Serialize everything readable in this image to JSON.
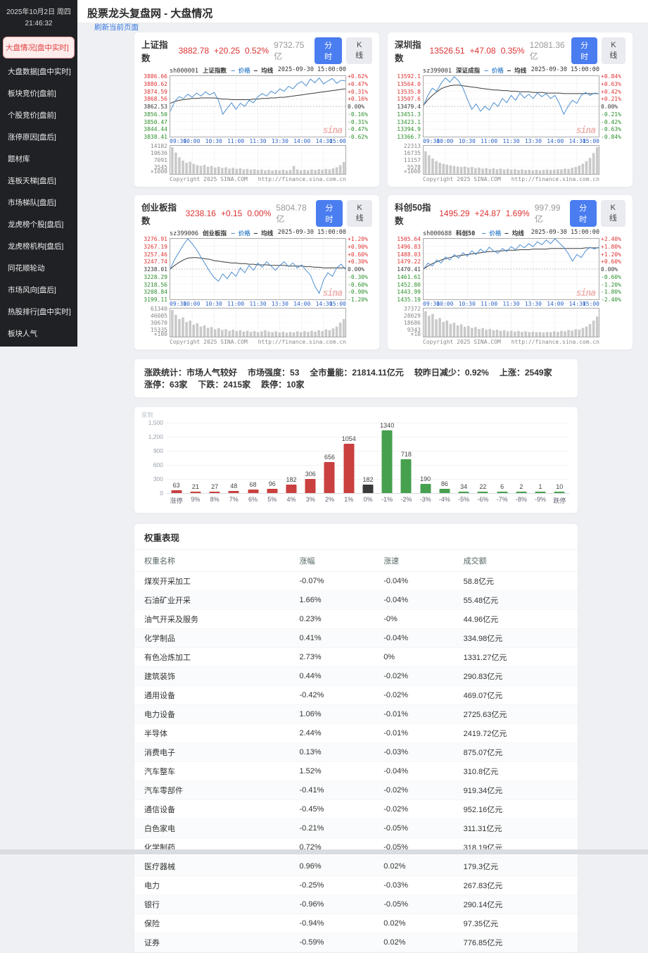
{
  "sidebar": {
    "date": "2025年10月2日 周四",
    "time": "21:46:32",
    "items": [
      {
        "label": "大盘情况[盘中实时]",
        "active": true
      },
      {
        "label": "大盘数据[盘中实时]",
        "active": false
      },
      {
        "label": "板块竞价[盘前]",
        "active": false
      },
      {
        "label": "个股竞价[盘前]",
        "active": false
      },
      {
        "label": "涨停原因[盘后]",
        "active": false
      },
      {
        "label": "题材库",
        "active": false
      },
      {
        "label": "连板天梯[盘后]",
        "active": false
      },
      {
        "label": "市场梯队[盘后]",
        "active": false
      },
      {
        "label": "龙虎榜个股[盘后]",
        "active": false
      },
      {
        "label": "龙虎榜机构[盘后]",
        "active": false
      },
      {
        "label": "同花顺轮动",
        "active": false
      },
      {
        "label": "市场风向[盘后]",
        "active": false
      },
      {
        "label": "热股排行[盘中实时]",
        "active": false
      },
      {
        "label": "板块人气",
        "active": false
      }
    ],
    "partial_item": "···"
  },
  "header": {
    "title": "股票龙头复盘网 - 大盘情况",
    "refresh_link": "刷新当前页面"
  },
  "chart_common": {
    "buttons": {
      "minute": "分时",
      "kline": "K线"
    },
    "legend": {
      "price": "价格",
      "avg": "均线"
    },
    "datetime": "2025-09-30 15:00:00",
    "x_labels": [
      "09:30",
      "10:00",
      "10:30",
      "11:00",
      "11:30",
      "13:30",
      "14:00",
      "14:30",
      "15:00"
    ],
    "copyright": "Copyright 2025 SINA.COM",
    "url": "http://finance.sina.com.cn",
    "watermark": "sina",
    "price_color": "#4d8fd1",
    "avg_color": "#3c3c3c",
    "volume_color": "#c9c9c9"
  },
  "index_charts": [
    {
      "name": "上证指数",
      "value": "3882.78",
      "change": "+20.25",
      "pct": "0.52%",
      "amount": "9732.75亿",
      "symbol": "sh000001",
      "inner_name": "上证指数",
      "left_labels": [
        "3886.66",
        "3880.62",
        "3874.59",
        "3868.56",
        "3862.53",
        "3856.50",
        "3850.47",
        "3844.44",
        "3838.41"
      ],
      "right_labels": [
        "+0.62%",
        "+0.47%",
        "+0.31%",
        "+0.16%",
        "0.00%",
        "-0.16%",
        "-0.31%",
        "-0.47%",
        "-0.62%"
      ],
      "vol_labels": [
        "14182",
        "10636",
        "7091",
        "3545"
      ],
      "vol_unit": "×1000",
      "price": [
        0.42,
        0.58,
        0.66,
        0.63,
        0.7,
        0.65,
        0.72,
        0.67,
        0.74,
        0.69,
        0.73,
        0.6,
        0.37,
        0.47,
        0.56,
        0.45,
        0.55,
        0.5,
        0.6,
        0.56,
        0.66,
        0.71,
        0.67,
        0.75,
        0.71,
        0.79,
        0.75,
        0.83,
        0.79,
        0.87,
        0.91,
        0.84,
        0.95,
        0.89,
        0.97,
        0.87,
        0.92,
        0.96,
        0.88,
        0.93,
        0.92
      ],
      "avg": [
        0.55,
        0.58,
        0.6,
        0.61,
        0.62,
        0.63,
        0.63,
        0.64,
        0.64,
        0.64,
        0.64,
        0.63,
        0.62,
        0.62,
        0.61,
        0.61,
        0.61,
        0.61,
        0.61,
        0.62,
        0.62,
        0.63,
        0.63,
        0.64,
        0.64,
        0.65,
        0.65,
        0.66,
        0.67,
        0.68,
        0.69,
        0.7,
        0.71,
        0.72,
        0.73,
        0.74,
        0.75,
        0.76,
        0.77,
        0.78,
        0.79
      ],
      "volume": [
        1.0,
        0.8,
        0.62,
        0.5,
        0.42,
        0.46,
        0.38,
        0.33,
        0.3,
        0.34,
        0.27,
        0.3,
        0.24,
        0.27,
        0.22,
        0.25,
        0.2,
        0.23,
        0.19,
        0.21,
        0.17,
        0.19,
        0.16,
        0.18,
        0.15,
        0.17,
        0.14,
        0.16,
        0.13,
        0.15,
        0.14,
        0.16,
        0.13,
        0.15,
        0.3,
        0.17,
        0.14,
        0.16,
        0.14,
        0.17,
        0.15,
        0.18,
        0.16,
        0.19,
        0.17,
        0.21,
        0.25,
        0.33,
        0.45
      ]
    },
    {
      "name": "深圳指数",
      "value": "13526.51",
      "change": "+47.08",
      "pct": "0.35%",
      "amount": "12081.36亿",
      "symbol": "sz399001",
      "inner_name": "深证成指",
      "left_labels": [
        "13592.1",
        "13564.0",
        "13535.8",
        "13507.6",
        "13479.4",
        "13451.3",
        "13423.1",
        "13394.9",
        "13366.7"
      ],
      "right_labels": [
        "+0.84%",
        "+0.63%",
        "+0.42%",
        "+0.21%",
        "0.00%",
        "-0.21%",
        "-0.42%",
        "-0.63%",
        "-0.84%"
      ],
      "vol_labels": [
        "22313",
        "16735",
        "11157",
        "5578"
      ],
      "vol_unit": "×1000",
      "price": [
        0.52,
        0.68,
        0.8,
        0.75,
        0.88,
        0.97,
        0.9,
        0.99,
        0.92,
        0.8,
        0.62,
        0.45,
        0.54,
        0.42,
        0.5,
        0.44,
        0.56,
        0.5,
        0.63,
        0.56,
        0.68,
        0.6,
        0.72,
        0.64,
        0.7,
        0.63,
        0.72,
        0.66,
        0.71,
        0.63,
        0.68,
        0.55,
        0.37,
        0.5,
        0.6,
        0.55,
        0.68,
        0.73,
        0.68,
        0.72,
        0.71
      ],
      "avg": [
        0.52,
        0.61,
        0.68,
        0.74,
        0.79,
        0.82,
        0.84,
        0.85,
        0.85,
        0.84,
        0.83,
        0.82,
        0.81,
        0.8,
        0.79,
        0.78,
        0.77,
        0.77,
        0.76,
        0.76,
        0.75,
        0.75,
        0.74,
        0.74,
        0.74,
        0.73,
        0.73,
        0.73,
        0.72,
        0.72,
        0.72,
        0.72,
        0.71,
        0.71,
        0.71,
        0.71,
        0.71,
        0.71,
        0.71,
        0.71,
        0.71
      ],
      "volume": [
        0.85,
        0.7,
        0.58,
        0.48,
        0.42,
        0.38,
        0.35,
        0.32,
        0.3,
        0.28,
        0.26,
        0.28,
        0.24,
        0.26,
        0.22,
        0.24,
        0.2,
        0.22,
        0.19,
        0.21,
        0.18,
        0.2,
        0.17,
        0.19,
        0.16,
        0.18,
        0.15,
        0.17,
        0.15,
        0.16,
        0.14,
        0.16,
        0.14,
        0.15,
        0.17,
        0.15,
        0.16,
        0.18,
        0.17,
        0.2,
        0.19,
        0.23,
        0.26,
        0.31,
        0.38,
        0.48,
        0.6,
        0.78,
        1.0
      ]
    },
    {
      "name": "创业板指数",
      "value": "3238.16",
      "change": "+0.15",
      "pct": "0.00%",
      "amount": "5804.78亿",
      "symbol": "sz399006",
      "inner_name": "创业板指",
      "left_labels": [
        "3276.91",
        "3267.19",
        "3257.46",
        "3247.74",
        "3238.01",
        "3228.29",
        "3218.56",
        "3208.84",
        "3199.11"
      ],
      "right_labels": [
        "+1.20%",
        "+0.90%",
        "+0.60%",
        "+0.30%",
        "0.00%",
        "-0.30%",
        "-0.60%",
        "-0.90%",
        "-1.20%"
      ],
      "vol_labels": [
        "61340",
        "46005",
        "30670",
        "15335"
      ],
      "vol_unit": "×100",
      "price": [
        0.5,
        0.66,
        0.78,
        0.9,
        1.0,
        0.92,
        0.82,
        0.7,
        0.58,
        0.46,
        0.36,
        0.3,
        0.42,
        0.34,
        0.45,
        0.38,
        0.52,
        0.44,
        0.56,
        0.48,
        0.6,
        0.53,
        0.62,
        0.55,
        0.48,
        0.56,
        0.62,
        0.54,
        0.6,
        0.52,
        0.57,
        0.48,
        0.4,
        0.22,
        0.1,
        0.32,
        0.44,
        0.38,
        0.52,
        0.58,
        0.5
      ],
      "avg": [
        0.5,
        0.56,
        0.61,
        0.65,
        0.68,
        0.69,
        0.69,
        0.68,
        0.67,
        0.66,
        0.64,
        0.63,
        0.62,
        0.61,
        0.6,
        0.6,
        0.59,
        0.59,
        0.58,
        0.58,
        0.57,
        0.57,
        0.57,
        0.56,
        0.56,
        0.56,
        0.56,
        0.55,
        0.55,
        0.55,
        0.55,
        0.54,
        0.54,
        0.53,
        0.53,
        0.52,
        0.52,
        0.52,
        0.52,
        0.52,
        0.52
      ],
      "volume": [
        1.0,
        0.82,
        0.66,
        0.72,
        0.55,
        0.6,
        0.45,
        0.5,
        0.38,
        0.42,
        0.33,
        0.36,
        0.28,
        0.32,
        0.25,
        0.28,
        0.22,
        0.26,
        0.21,
        0.24,
        0.19,
        0.22,
        0.18,
        0.21,
        0.17,
        0.2,
        0.24,
        0.19,
        0.17,
        0.2,
        0.16,
        0.19,
        0.15,
        0.18,
        0.16,
        0.2,
        0.17,
        0.21,
        0.18,
        0.22,
        0.19,
        0.24,
        0.21,
        0.27,
        0.24,
        0.31,
        0.38,
        0.52,
        0.66
      ]
    },
    {
      "name": "科创50指数",
      "value": "1495.29",
      "change": "+24.87",
      "pct": "1.69%",
      "amount": "997.99亿",
      "symbol": "sh000688",
      "inner_name": "科创50",
      "left_labels": [
        "1505.64",
        "1496.83",
        "1488.03",
        "1479.22",
        "1470.41",
        "1461.61",
        "1452.80",
        "1443.99",
        "1435.19"
      ],
      "right_labels": [
        "+2.40%",
        "+1.80%",
        "+1.20%",
        "+0.60%",
        "0.00%",
        "-0.60%",
        "-1.20%",
        "-1.80%",
        "-2.40%"
      ],
      "vol_labels": [
        "37372",
        "28029",
        "18686",
        "9343"
      ],
      "vol_unit": "×10",
      "price": [
        0.5,
        0.6,
        0.55,
        0.65,
        0.6,
        0.7,
        0.65,
        0.74,
        0.68,
        0.77,
        0.71,
        0.8,
        0.74,
        0.83,
        0.77,
        0.86,
        0.8,
        0.76,
        0.84,
        0.79,
        0.87,
        0.82,
        0.9,
        0.85,
        0.92,
        0.87,
        0.95,
        0.9,
        0.98,
        0.92,
        1.0,
        0.93,
        0.86,
        0.76,
        0.63,
        0.74,
        0.69,
        0.8,
        0.86,
        0.83,
        0.86
      ],
      "avg": [
        0.5,
        0.55,
        0.59,
        0.62,
        0.65,
        0.67,
        0.69,
        0.71,
        0.72,
        0.73,
        0.74,
        0.75,
        0.76,
        0.77,
        0.78,
        0.79,
        0.79,
        0.8,
        0.8,
        0.81,
        0.81,
        0.81,
        0.82,
        0.82,
        0.82,
        0.83,
        0.83,
        0.83,
        0.83,
        0.84,
        0.84,
        0.84,
        0.84,
        0.84,
        0.84,
        0.84,
        0.84,
        0.85,
        0.85,
        0.85,
        0.85
      ],
      "volume": [
        0.95,
        0.78,
        0.85,
        0.65,
        0.7,
        0.55,
        0.6,
        0.48,
        0.52,
        0.42,
        0.46,
        0.37,
        0.4,
        0.33,
        0.36,
        0.29,
        0.32,
        0.26,
        0.29,
        0.24,
        0.26,
        0.22,
        0.24,
        0.2,
        0.22,
        0.19,
        0.21,
        0.18,
        0.2,
        0.17,
        0.19,
        0.17,
        0.18,
        0.16,
        0.18,
        0.17,
        0.2,
        0.18,
        0.22,
        0.2,
        0.25,
        0.23,
        0.28,
        0.26,
        0.33,
        0.38,
        0.47,
        0.6,
        0.75
      ]
    }
  ],
  "stats": {
    "items": [
      {
        "label": "涨跌统计：",
        "value": "市场人气较好"
      },
      {
        "label": "市场强度：",
        "value": "53"
      },
      {
        "label": "全市量能：",
        "value": "21814.11亿元"
      },
      {
        "label": "较昨日减少：",
        "value": "0.92%"
      },
      {
        "label": "上涨：",
        "value": "2549家"
      },
      {
        "label": "涨停：",
        "value": "63家"
      },
      {
        "label": "下跌：",
        "value": "2415家"
      },
      {
        "label": "跌停：",
        "value": "10家"
      }
    ]
  },
  "chart_data": {
    "type": "bar",
    "title": "家数",
    "ylabel": "家数",
    "categories": [
      "涨停",
      "9%",
      "8%",
      "7%",
      "6%",
      "5%",
      "4%",
      "3%",
      "2%",
      "1%",
      "0%",
      "-1%",
      "-2%",
      "-3%",
      "-4%",
      "-5%",
      "-6%",
      "-7%",
      "-8%",
      "-9%",
      "跌停"
    ],
    "values": [
      63,
      21,
      27,
      48,
      68,
      96,
      182,
      306,
      656,
      1054,
      182,
      1340,
      718,
      190,
      86,
      34,
      22,
      6,
      2,
      1,
      10
    ],
    "ylim": [
      0,
      1500
    ],
    "yticks": [
      0,
      300,
      600,
      900,
      1200,
      1500
    ],
    "grid": true,
    "legend_position": "none",
    "colors": {
      "gain": "#c9403f",
      "zero": "#3a3a3a",
      "loss": "#46a04e"
    }
  },
  "weights": {
    "title": "权重表现",
    "columns": [
      "权重名称",
      "涨幅",
      "涨速",
      "成交额"
    ],
    "rows": [
      [
        "煤炭开采加工",
        "-0.07%",
        "-0.04%",
        "58.8亿元"
      ],
      [
        "石油矿业开采",
        "1.66%",
        "-0.04%",
        "55.48亿元"
      ],
      [
        "油气开采及服务",
        "0.23%",
        "-0%",
        "44.96亿元"
      ],
      [
        "化学制品",
        "0.41%",
        "-0.04%",
        "334.98亿元"
      ],
      [
        "有色冶炼加工",
        "2.73%",
        "0%",
        "1331.27亿元"
      ],
      [
        "建筑装饰",
        "0.44%",
        "-0.02%",
        "290.83亿元"
      ],
      [
        "通用设备",
        "-0.42%",
        "-0.02%",
        "469.07亿元"
      ],
      [
        "电力设备",
        "1.06%",
        "-0.01%",
        "2725.63亿元"
      ],
      [
        "半导体",
        "2.44%",
        "-0.01%",
        "2419.72亿元"
      ],
      [
        "消费电子",
        "0.13%",
        "-0.03%",
        "875.07亿元"
      ],
      [
        "汽车整车",
        "1.52%",
        "-0.04%",
        "310.8亿元"
      ],
      [
        "汽车零部件",
        "-0.41%",
        "-0.02%",
        "919.34亿元"
      ],
      [
        "通信设备",
        "-0.45%",
        "-0.02%",
        "952.16亿元"
      ],
      [
        "白色家电",
        "-0.21%",
        "-0.05%",
        "311.31亿元"
      ],
      [
        "化学制药",
        "0.72%",
        "-0.05%",
        "318.19亿元"
      ],
      [
        "医疗器械",
        "0.96%",
        "0.02%",
        "179.3亿元"
      ],
      [
        "电力",
        "-0.25%",
        "-0.03%",
        "267.83亿元"
      ],
      [
        "银行",
        "-0.96%",
        "-0.05%",
        "290.14亿元"
      ],
      [
        "保险",
        "-0.94%",
        "0.02%",
        "97.35亿元"
      ],
      [
        "证券",
        "-0.59%",
        "0.02%",
        "776.85亿元"
      ]
    ]
  }
}
